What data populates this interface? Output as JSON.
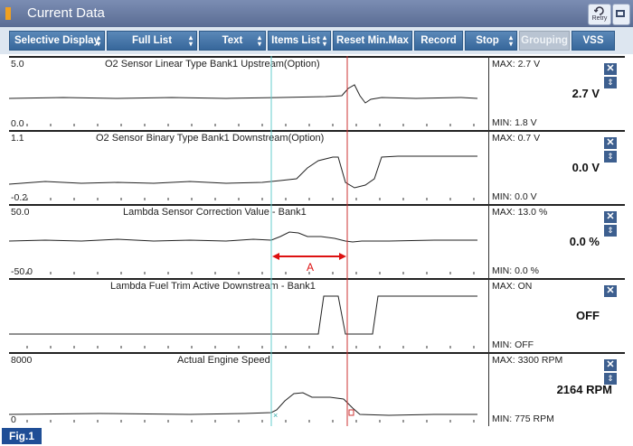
{
  "window": {
    "title": "Current Data",
    "retry_label": "Retry",
    "figure_label": "Fig.1"
  },
  "toolbar": {
    "buttons": [
      {
        "label": "Selective Display",
        "dropdown": true,
        "enabled": true
      },
      {
        "label": "Full List",
        "dropdown": true,
        "enabled": true
      },
      {
        "label": "Text",
        "dropdown": true,
        "enabled": true
      },
      {
        "label": "Items List",
        "dropdown": true,
        "enabled": true
      },
      {
        "label": "Reset Min.Max",
        "dropdown": false,
        "enabled": true
      },
      {
        "label": "Record",
        "dropdown": false,
        "enabled": true
      },
      {
        "label": "Stop",
        "dropdown": true,
        "enabled": true
      },
      {
        "label": "Grouping",
        "dropdown": false,
        "enabled": false
      },
      {
        "label": "VSS",
        "dropdown": false,
        "enabled": true
      }
    ]
  },
  "annotation": {
    "label": "A",
    "color": "#dd1111"
  },
  "cursors": {
    "cyan": "#66cccc",
    "red": "#cc3333"
  },
  "sensors": [
    {
      "name": "O2 Sensor Linear Type Bank1 Upstream(Option)",
      "scale_max": "5.0",
      "scale_min": "0.0",
      "max": "MAX:   2.7 V",
      "min": "MIN:   1.8 V",
      "current": "2.7 V",
      "has_move_button": true
    },
    {
      "name": "O2 Sensor Binary Type Bank1 Downstream(Option)",
      "scale_max": "1.1",
      "scale_min": "-0.2",
      "max": "MAX:   0.7 V",
      "min": "MIN:   0.0 V",
      "current": "0.0 V",
      "has_move_button": true
    },
    {
      "name": "Lambda Sensor Correction Value - Bank1",
      "scale_max": "50.0",
      "scale_min": "-50.0",
      "max": "MAX:  13.0 %",
      "min": "MIN:   0.0 %",
      "current": "0.0 %",
      "has_move_button": true
    },
    {
      "name": "Lambda Fuel Trim Active Downstream - Bank1",
      "scale_max": "",
      "scale_min": "",
      "max": "MAX: ON",
      "min": "MIN: OFF",
      "current": "OFF",
      "has_move_button": false
    },
    {
      "name": "Actual Engine Speed",
      "scale_max": "8000",
      "scale_min": "0",
      "max": "MAX:   3300 RPM",
      "min": "MIN:   775 RPM",
      "current": "2164 RPM",
      "has_move_button": true
    }
  ]
}
